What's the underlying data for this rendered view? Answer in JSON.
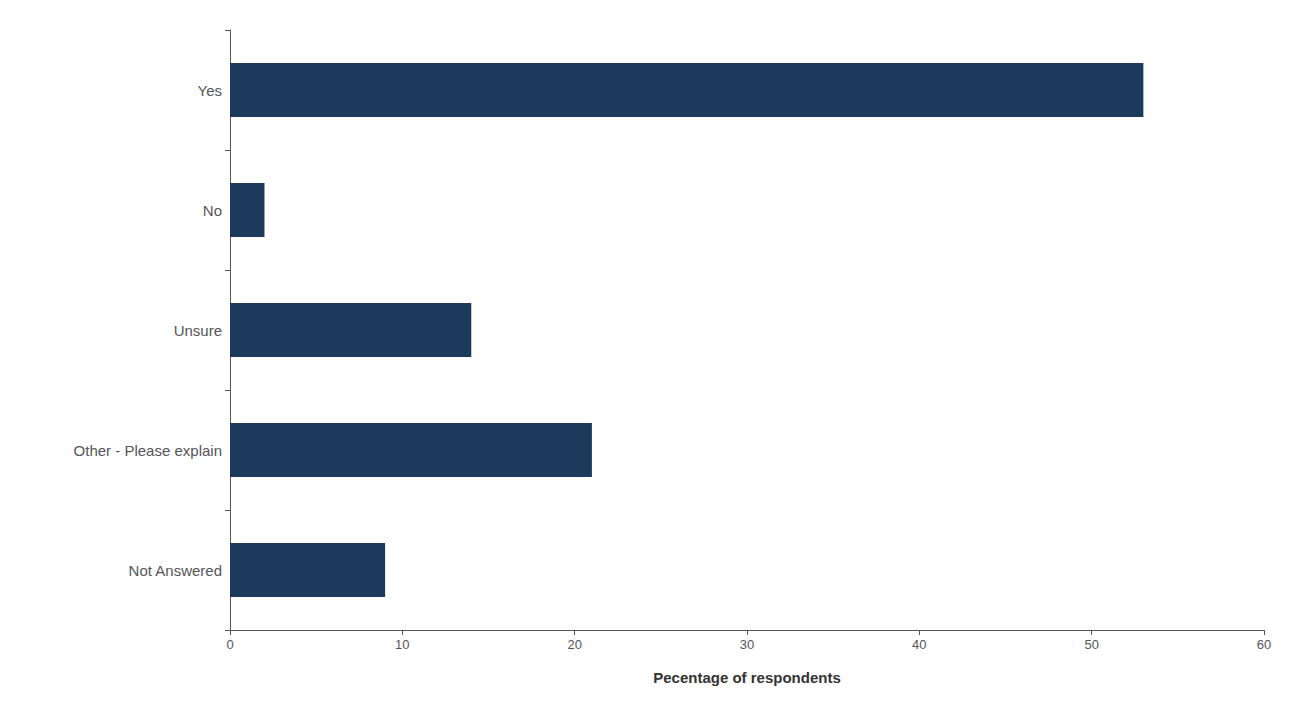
{
  "chart_data": {
    "type": "bar",
    "orientation": "horizontal",
    "categories": [
      "Yes",
      "No",
      "Unsure",
      "Other - Please explain",
      "Not Answered"
    ],
    "values": [
      53,
      2,
      14,
      21,
      9
    ],
    "color": "#1B3A5C",
    "xlabel": "Pecentage of respondents",
    "xlim": [
      0,
      60
    ],
    "xticks": [
      0,
      10,
      20,
      30,
      40,
      50,
      60
    ],
    "grid": false
  }
}
